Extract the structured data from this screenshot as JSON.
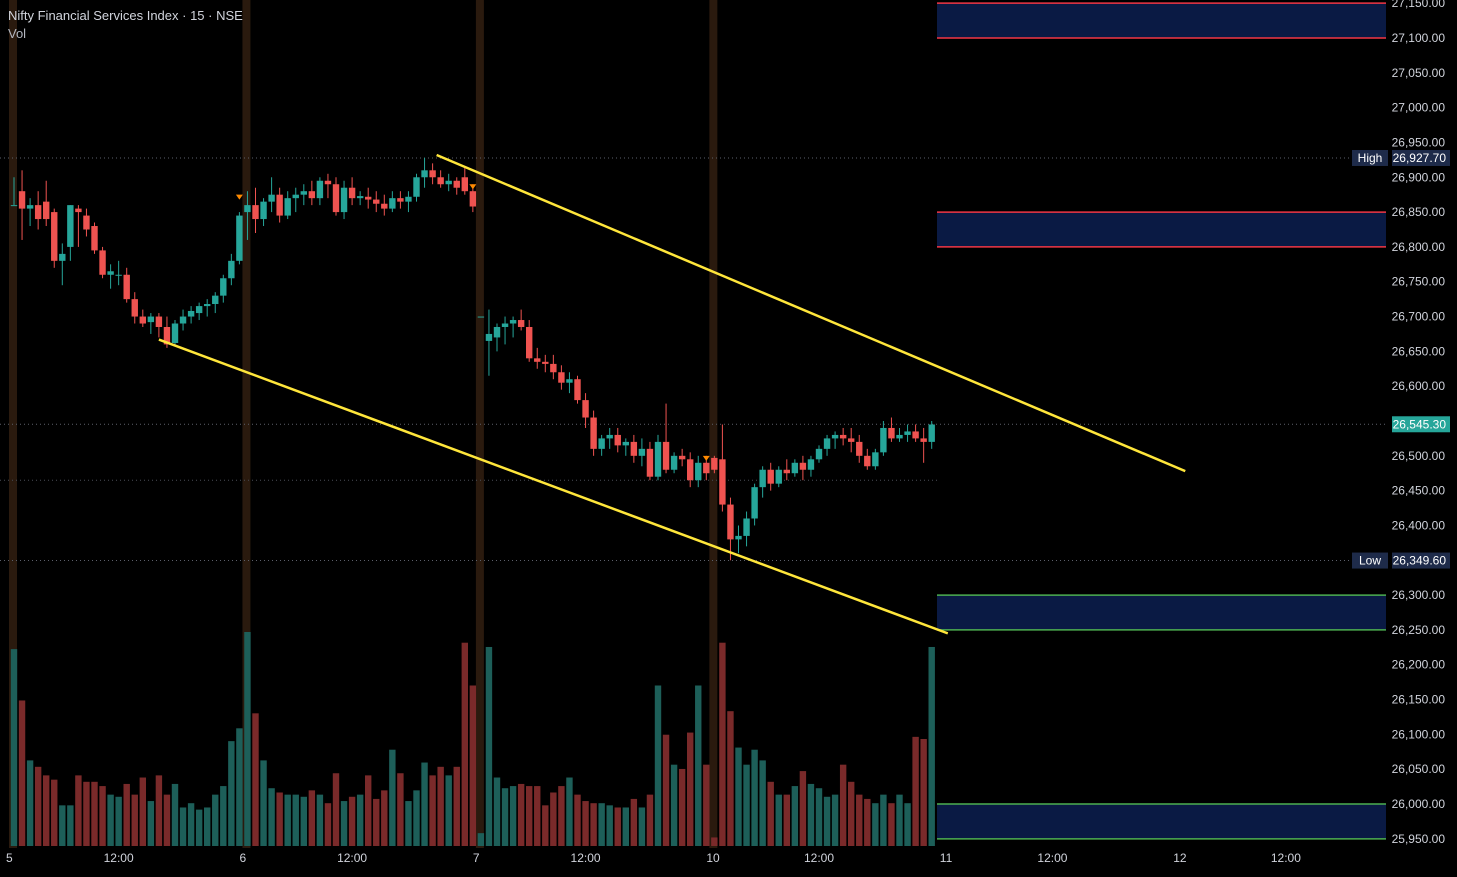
{
  "header": {
    "title": "Nifty Financial Services Index · 15 · NSE",
    "volume_label": "Vol"
  },
  "chart_data": {
    "type": "candlestick",
    "y_axis": {
      "range": [
        25930,
        27160
      ],
      "ticks": [
        {
          "value": 27150,
          "label": "27,150.00"
        },
        {
          "value": 27100,
          "label": "27,100.00"
        },
        {
          "value": 27050,
          "label": "27,050.00"
        },
        {
          "value": 27000,
          "label": "27,000.00"
        },
        {
          "value": 26950,
          "label": "26,950.00"
        },
        {
          "value": 26900,
          "label": "26,900.00"
        },
        {
          "value": 26850,
          "label": "26,850.00"
        },
        {
          "value": 26800,
          "label": "26,800.00"
        },
        {
          "value": 26750,
          "label": "26,750.00"
        },
        {
          "value": 26700,
          "label": "26,700.00"
        },
        {
          "value": 26650,
          "label": "26,650.00"
        },
        {
          "value": 26600,
          "label": "26,600.00"
        },
        {
          "value": 26550,
          "label": "26,550.00"
        },
        {
          "value": 26500,
          "label": "26,500.00"
        },
        {
          "value": 26450,
          "label": "26,450.00"
        },
        {
          "value": 26400,
          "label": "26,400.00"
        },
        {
          "value": 26300,
          "label": "26,300.00"
        },
        {
          "value": 26250,
          "label": "26,250.00"
        },
        {
          "value": 26200,
          "label": "26,200.00"
        },
        {
          "value": 26150,
          "label": "26,150.00"
        },
        {
          "value": 26100,
          "label": "26,100.00"
        },
        {
          "value": 26050,
          "label": "26,050.00"
        },
        {
          "value": 26000,
          "label": "26,000.00"
        },
        {
          "value": 25950,
          "label": "25,950.00"
        }
      ]
    },
    "x_axis": {
      "labels": [
        {
          "bar": 0,
          "text": "5"
        },
        {
          "bar": 13,
          "text": "12:00"
        },
        {
          "bar": 29,
          "text": "6"
        },
        {
          "bar": 42,
          "text": "12:00"
        },
        {
          "bar": 58,
          "text": "7"
        },
        {
          "bar": 71,
          "text": "12:00"
        },
        {
          "bar": 87,
          "text": "10"
        },
        {
          "bar": 100,
          "text": "12:00"
        },
        {
          "bar": 116,
          "text": "11"
        },
        {
          "bar": 129,
          "text": "12:00"
        },
        {
          "bar": 145,
          "text": "12"
        },
        {
          "bar": 158,
          "text": "12:00"
        }
      ]
    },
    "session_breaks": [
      0,
      29,
      58,
      87
    ],
    "price_markers": {
      "high": {
        "label": "High",
        "value": 26927.7,
        "text": "26,927.70"
      },
      "low": {
        "label": "Low",
        "value": 26349.6,
        "text": "26,349.60"
      },
      "last": {
        "value": 26545.3,
        "text": "26,545.30"
      }
    },
    "zones": [
      {
        "top": 27150,
        "bottom": 27100,
        "line_color": "#f23645"
      },
      {
        "top": 26850,
        "bottom": 26800,
        "line_color": "#f23645"
      },
      {
        "top": 26300,
        "bottom": 26250,
        "line_color": "#4caf50"
      },
      {
        "top": 26000,
        "bottom": 25950,
        "line_color": "#4caf50"
      }
    ],
    "trendlines": [
      {
        "from": [
          52.5,
          26932
        ],
        "to": [
          145.5,
          26478
        ]
      },
      {
        "from": [
          18,
          26667
        ],
        "to": [
          116,
          26245
        ]
      }
    ],
    "signal_markers": [
      {
        "bar": 28,
        "value": 26875
      },
      {
        "bar": 57,
        "value": 26890
      },
      {
        "bar": 86,
        "value": 26500
      }
    ],
    "volume": {
      "max": 100
    },
    "candles": [
      {
        "o": 26860,
        "h": 26900,
        "l": 26860,
        "c": 26860,
        "v": 92
      },
      {
        "o": 26880,
        "h": 26910,
        "l": 26810,
        "c": 26855,
        "v": 68
      },
      {
        "o": 26855,
        "h": 26870,
        "l": 26830,
        "c": 26860,
        "v": 40
      },
      {
        "o": 26860,
        "h": 26880,
        "l": 26825,
        "c": 26840,
        "v": 37
      },
      {
        "o": 26865,
        "h": 26895,
        "l": 26830,
        "c": 26840,
        "v": 33
      },
      {
        "o": 26850,
        "h": 26855,
        "l": 26770,
        "c": 26780,
        "v": 31
      },
      {
        "o": 26780,
        "h": 26805,
        "l": 26745,
        "c": 26790,
        "v": 19
      },
      {
        "o": 26800,
        "h": 26860,
        "l": 26780,
        "c": 26860,
        "v": 19
      },
      {
        "o": 26855,
        "h": 26860,
        "l": 26800,
        "c": 26850,
        "v": 33
      },
      {
        "o": 26845,
        "h": 26855,
        "l": 26815,
        "c": 26825,
        "v": 30
      },
      {
        "o": 26830,
        "h": 26835,
        "l": 26790,
        "c": 26795,
        "v": 30
      },
      {
        "o": 26795,
        "h": 26800,
        "l": 26755,
        "c": 26760,
        "v": 28
      },
      {
        "o": 26760,
        "h": 26775,
        "l": 26740,
        "c": 26765,
        "v": 24
      },
      {
        "o": 26760,
        "h": 26780,
        "l": 26745,
        "c": 26760,
        "v": 23
      },
      {
        "o": 26760,
        "h": 26770,
        "l": 26720,
        "c": 26725,
        "v": 29
      },
      {
        "o": 26725,
        "h": 26735,
        "l": 26690,
        "c": 26700,
        "v": 24
      },
      {
        "o": 26700,
        "h": 26710,
        "l": 26685,
        "c": 26690,
        "v": 32
      },
      {
        "o": 26692,
        "h": 26705,
        "l": 26675,
        "c": 26700,
        "v": 21
      },
      {
        "o": 26700,
        "h": 26705,
        "l": 26670,
        "c": 26685,
        "v": 33
      },
      {
        "o": 26685,
        "h": 26700,
        "l": 26655,
        "c": 26660,
        "v": 24
      },
      {
        "o": 26662,
        "h": 26695,
        "l": 26658,
        "c": 26690,
        "v": 29
      },
      {
        "o": 26690,
        "h": 26710,
        "l": 26680,
        "c": 26700,
        "v": 18
      },
      {
        "o": 26700,
        "h": 26715,
        "l": 26690,
        "c": 26708,
        "v": 20
      },
      {
        "o": 26705,
        "h": 26720,
        "l": 26695,
        "c": 26715,
        "v": 17
      },
      {
        "o": 26715,
        "h": 26725,
        "l": 26700,
        "c": 26718,
        "v": 18
      },
      {
        "o": 26718,
        "h": 26735,
        "l": 26705,
        "c": 26730,
        "v": 24
      },
      {
        "o": 26730,
        "h": 26760,
        "l": 26720,
        "c": 26755,
        "v": 28
      },
      {
        "o": 26755,
        "h": 26790,
        "l": 26745,
        "c": 26780,
        "v": 49
      },
      {
        "o": 26780,
        "h": 26850,
        "l": 26775,
        "c": 26845,
        "v": 55
      },
      {
        "o": 26850,
        "h": 26880,
        "l": 26810,
        "c": 26860,
        "v": 100
      },
      {
        "o": 26860,
        "h": 26885,
        "l": 26820,
        "c": 26840,
        "v": 62
      },
      {
        "o": 26840,
        "h": 26870,
        "l": 26830,
        "c": 26865,
        "v": 40
      },
      {
        "o": 26865,
        "h": 26900,
        "l": 26850,
        "c": 26875,
        "v": 27
      },
      {
        "o": 26875,
        "h": 26885,
        "l": 26835,
        "c": 26845,
        "v": 25
      },
      {
        "o": 26845,
        "h": 26880,
        "l": 26840,
        "c": 26870,
        "v": 24
      },
      {
        "o": 26870,
        "h": 26885,
        "l": 26850,
        "c": 26875,
        "v": 24
      },
      {
        "o": 26875,
        "h": 26890,
        "l": 26860,
        "c": 26880,
        "v": 23
      },
      {
        "o": 26880,
        "h": 26895,
        "l": 26860,
        "c": 26870,
        "v": 26
      },
      {
        "o": 26870,
        "h": 26900,
        "l": 26860,
        "c": 26895,
        "v": 24
      },
      {
        "o": 26895,
        "h": 26905,
        "l": 26870,
        "c": 26890,
        "v": 20
      },
      {
        "o": 26890,
        "h": 26900,
        "l": 26845,
        "c": 26850,
        "v": 34
      },
      {
        "o": 26850,
        "h": 26895,
        "l": 26840,
        "c": 26885,
        "v": 21
      },
      {
        "o": 26885,
        "h": 26900,
        "l": 26860,
        "c": 26870,
        "v": 23
      },
      {
        "o": 26870,
        "h": 26880,
        "l": 26860,
        "c": 26873,
        "v": 24
      },
      {
        "o": 26872,
        "h": 26885,
        "l": 26855,
        "c": 26868,
        "v": 33
      },
      {
        "o": 26868,
        "h": 26880,
        "l": 26850,
        "c": 26862,
        "v": 22
      },
      {
        "o": 26862,
        "h": 26875,
        "l": 26845,
        "c": 26855,
        "v": 26
      },
      {
        "o": 26855,
        "h": 26880,
        "l": 26850,
        "c": 26870,
        "v": 45
      },
      {
        "o": 26870,
        "h": 26880,
        "l": 26855,
        "c": 26865,
        "v": 34
      },
      {
        "o": 26865,
        "h": 26880,
        "l": 26850,
        "c": 26872,
        "v": 21
      },
      {
        "o": 26872,
        "h": 26905,
        "l": 26865,
        "c": 26900,
        "v": 26
      },
      {
        "o": 26900,
        "h": 26928,
        "l": 26885,
        "c": 26910,
        "v": 39
      },
      {
        "o": 26910,
        "h": 26920,
        "l": 26890,
        "c": 26900,
        "v": 33
      },
      {
        "o": 26900,
        "h": 26910,
        "l": 26885,
        "c": 26890,
        "v": 37
      },
      {
        "o": 26890,
        "h": 26905,
        "l": 26880,
        "c": 26895,
        "v": 33
      },
      {
        "o": 26895,
        "h": 26900,
        "l": 26875,
        "c": 26885,
        "v": 37
      },
      {
        "o": 26900,
        "h": 26915,
        "l": 26875,
        "c": 26880,
        "v": 95
      },
      {
        "o": 26880,
        "h": 26890,
        "l": 26850,
        "c": 26858,
        "v": 75
      },
      {
        "o": 26700,
        "h": 26700,
        "l": 26700,
        "c": 26700,
        "v": 6
      },
      {
        "o": 26665,
        "h": 26710,
        "l": 26615,
        "c": 26675,
        "v": 93
      },
      {
        "o": 26670,
        "h": 26690,
        "l": 26650,
        "c": 26685,
        "v": 32
      },
      {
        "o": 26685,
        "h": 26700,
        "l": 26660,
        "c": 26690,
        "v": 27
      },
      {
        "o": 26690,
        "h": 26700,
        "l": 26670,
        "c": 26695,
        "v": 28
      },
      {
        "o": 26695,
        "h": 26710,
        "l": 26680,
        "c": 26685,
        "v": 29
      },
      {
        "o": 26685,
        "h": 26695,
        "l": 26635,
        "c": 26640,
        "v": 28
      },
      {
        "o": 26640,
        "h": 26655,
        "l": 26625,
        "c": 26635,
        "v": 28
      },
      {
        "o": 26635,
        "h": 26645,
        "l": 26620,
        "c": 26632,
        "v": 19
      },
      {
        "o": 26632,
        "h": 26645,
        "l": 26610,
        "c": 26620,
        "v": 25
      },
      {
        "o": 26620,
        "h": 26630,
        "l": 26595,
        "c": 26605,
        "v": 28
      },
      {
        "o": 26605,
        "h": 26620,
        "l": 26590,
        "c": 26610,
        "v": 32
      },
      {
        "o": 26610,
        "h": 26615,
        "l": 26575,
        "c": 26580,
        "v": 24
      },
      {
        "o": 26580,
        "h": 26590,
        "l": 26540,
        "c": 26555,
        "v": 21
      },
      {
        "o": 26555,
        "h": 26565,
        "l": 26500,
        "c": 26510,
        "v": 20
      },
      {
        "o": 26510,
        "h": 26530,
        "l": 26500,
        "c": 26525,
        "v": 20
      },
      {
        "o": 26525,
        "h": 26540,
        "l": 26510,
        "c": 26530,
        "v": 19
      },
      {
        "o": 26530,
        "h": 26540,
        "l": 26505,
        "c": 26515,
        "v": 18
      },
      {
        "o": 26515,
        "h": 26525,
        "l": 26500,
        "c": 26520,
        "v": 18
      },
      {
        "o": 26520,
        "h": 26530,
        "l": 26490,
        "c": 26500,
        "v": 22
      },
      {
        "o": 26500,
        "h": 26525,
        "l": 26485,
        "c": 26510,
        "v": 18
      },
      {
        "o": 26510,
        "h": 26520,
        "l": 26465,
        "c": 26470,
        "v": 24
      },
      {
        "o": 26470,
        "h": 26530,
        "l": 26465,
        "c": 26520,
        "v": 75
      },
      {
        "o": 26520,
        "h": 26575,
        "l": 26475,
        "c": 26480,
        "v": 52
      },
      {
        "o": 26480,
        "h": 26505,
        "l": 26475,
        "c": 26500,
        "v": 38
      },
      {
        "o": 26500,
        "h": 26510,
        "l": 26485,
        "c": 26495,
        "v": 36
      },
      {
        "o": 26495,
        "h": 26505,
        "l": 26455,
        "c": 26465,
        "v": 53
      },
      {
        "o": 26465,
        "h": 26500,
        "l": 26455,
        "c": 26490,
        "v": 75
      },
      {
        "o": 26490,
        "h": 26500,
        "l": 26465,
        "c": 26475,
        "v": 38
      },
      {
        "o": 26497,
        "h": 26500,
        "l": 26475,
        "c": 26480,
        "v": 4
      },
      {
        "o": 26495,
        "h": 26545,
        "l": 26420,
        "c": 26430,
        "v": 95
      },
      {
        "o": 26430,
        "h": 26440,
        "l": 26350,
        "c": 26380,
        "v": 63
      },
      {
        "o": 26380,
        "h": 26400,
        "l": 26360,
        "c": 26385,
        "v": 46
      },
      {
        "o": 26385,
        "h": 26420,
        "l": 26370,
        "c": 26410,
        "v": 38
      },
      {
        "o": 26410,
        "h": 26460,
        "l": 26400,
        "c": 26455,
        "v": 45
      },
      {
        "o": 26455,
        "h": 26485,
        "l": 26440,
        "c": 26480,
        "v": 40
      },
      {
        "o": 26480,
        "h": 26490,
        "l": 26450,
        "c": 26460,
        "v": 30
      },
      {
        "o": 26460,
        "h": 26485,
        "l": 26455,
        "c": 26480,
        "v": 24
      },
      {
        "o": 26480,
        "h": 26495,
        "l": 26465,
        "c": 26475,
        "v": 24
      },
      {
        "o": 26475,
        "h": 26495,
        "l": 26470,
        "c": 26490,
        "v": 28
      },
      {
        "o": 26490,
        "h": 26500,
        "l": 26465,
        "c": 26480,
        "v": 35
      },
      {
        "o": 26480,
        "h": 26500,
        "l": 26470,
        "c": 26495,
        "v": 29
      },
      {
        "o": 26495,
        "h": 26515,
        "l": 26490,
        "c": 26510,
        "v": 27
      },
      {
        "o": 26510,
        "h": 26530,
        "l": 26500,
        "c": 26525,
        "v": 23
      },
      {
        "o": 26525,
        "h": 26535,
        "l": 26510,
        "c": 26530,
        "v": 24
      },
      {
        "o": 26530,
        "h": 26540,
        "l": 26515,
        "c": 26525,
        "v": 38
      },
      {
        "o": 26525,
        "h": 26540,
        "l": 26505,
        "c": 26520,
        "v": 30
      },
      {
        "o": 26520,
        "h": 26530,
        "l": 26490,
        "c": 26500,
        "v": 24
      },
      {
        "o": 26500,
        "h": 26510,
        "l": 26480,
        "c": 26485,
        "v": 22
      },
      {
        "o": 26485,
        "h": 26510,
        "l": 26480,
        "c": 26505,
        "v": 20
      },
      {
        "o": 26505,
        "h": 26550,
        "l": 26500,
        "c": 26540,
        "v": 24
      },
      {
        "o": 26540,
        "h": 26555,
        "l": 26520,
        "c": 26525,
        "v": 20
      },
      {
        "o": 26525,
        "h": 26540,
        "l": 26520,
        "c": 26530,
        "v": 24
      },
      {
        "o": 26530,
        "h": 26545,
        "l": 26520,
        "c": 26535,
        "v": 20
      },
      {
        "o": 26535,
        "h": 26545,
        "l": 26520,
        "c": 26525,
        "v": 51
      },
      {
        "o": 26525,
        "h": 26540,
        "l": 26490,
        "c": 26520,
        "v": 50
      },
      {
        "o": 26520,
        "h": 26550,
        "l": 26510,
        "c": 26545,
        "v": 93
      }
    ]
  }
}
